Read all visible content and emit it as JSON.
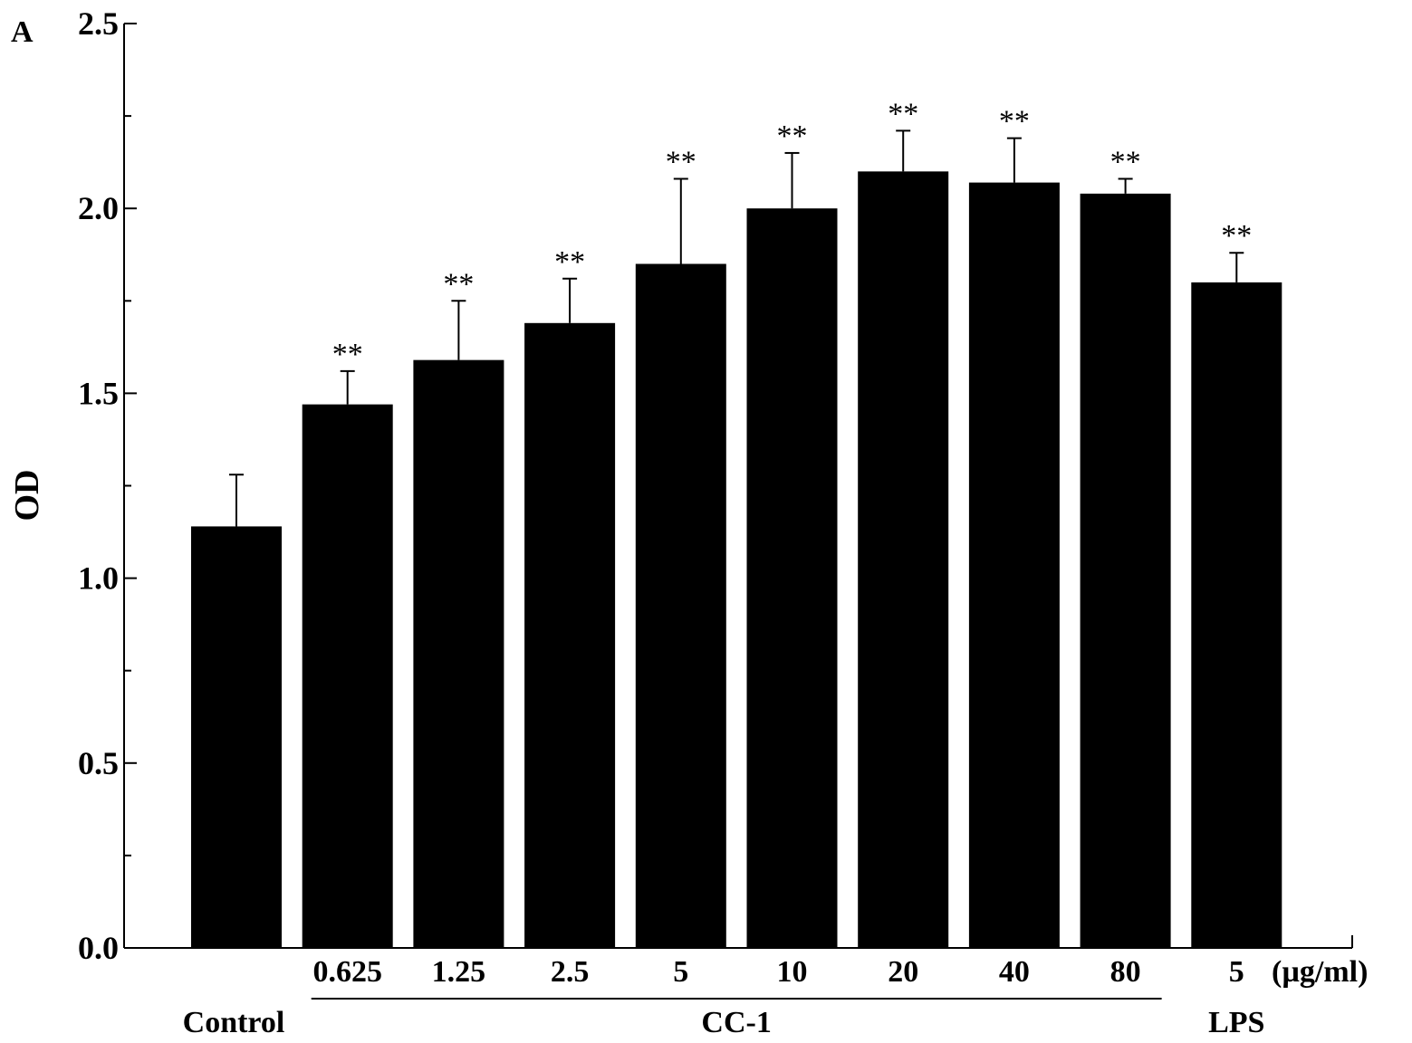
{
  "panel_label": "A",
  "chart_data": {
    "type": "bar",
    "ylabel": "OD",
    "ylim": [
      0,
      2.5
    ],
    "yticks": [
      0.0,
      0.5,
      1.0,
      1.5,
      2.0,
      2.5
    ],
    "ytick_labels": [
      "0.0",
      "0.5",
      "1.0",
      "1.5",
      "2.0",
      "2.5"
    ],
    "categories": [
      "",
      "0.625",
      "1.25",
      "2.5",
      "5",
      "10",
      "20",
      "40",
      "80",
      "5"
    ],
    "values": [
      1.14,
      1.47,
      1.59,
      1.69,
      1.85,
      2.0,
      2.1,
      2.07,
      2.04,
      1.8
    ],
    "errors": [
      0.14,
      0.09,
      0.16,
      0.12,
      0.23,
      0.15,
      0.11,
      0.12,
      0.04,
      0.08
    ],
    "significance": [
      "",
      "**",
      "**",
      "**",
      "**",
      "**",
      "**",
      "**",
      "**",
      "**"
    ],
    "unit_label": "(µg/ml)",
    "groups": [
      {
        "label": "Control",
        "start": 0,
        "end": 0,
        "underline": false
      },
      {
        "label": "CC-1",
        "start": 1,
        "end": 8,
        "underline": true
      },
      {
        "label": "LPS",
        "start": 9,
        "end": 9,
        "underline": false
      }
    ],
    "bar_color": "#000000",
    "grid": false
  }
}
